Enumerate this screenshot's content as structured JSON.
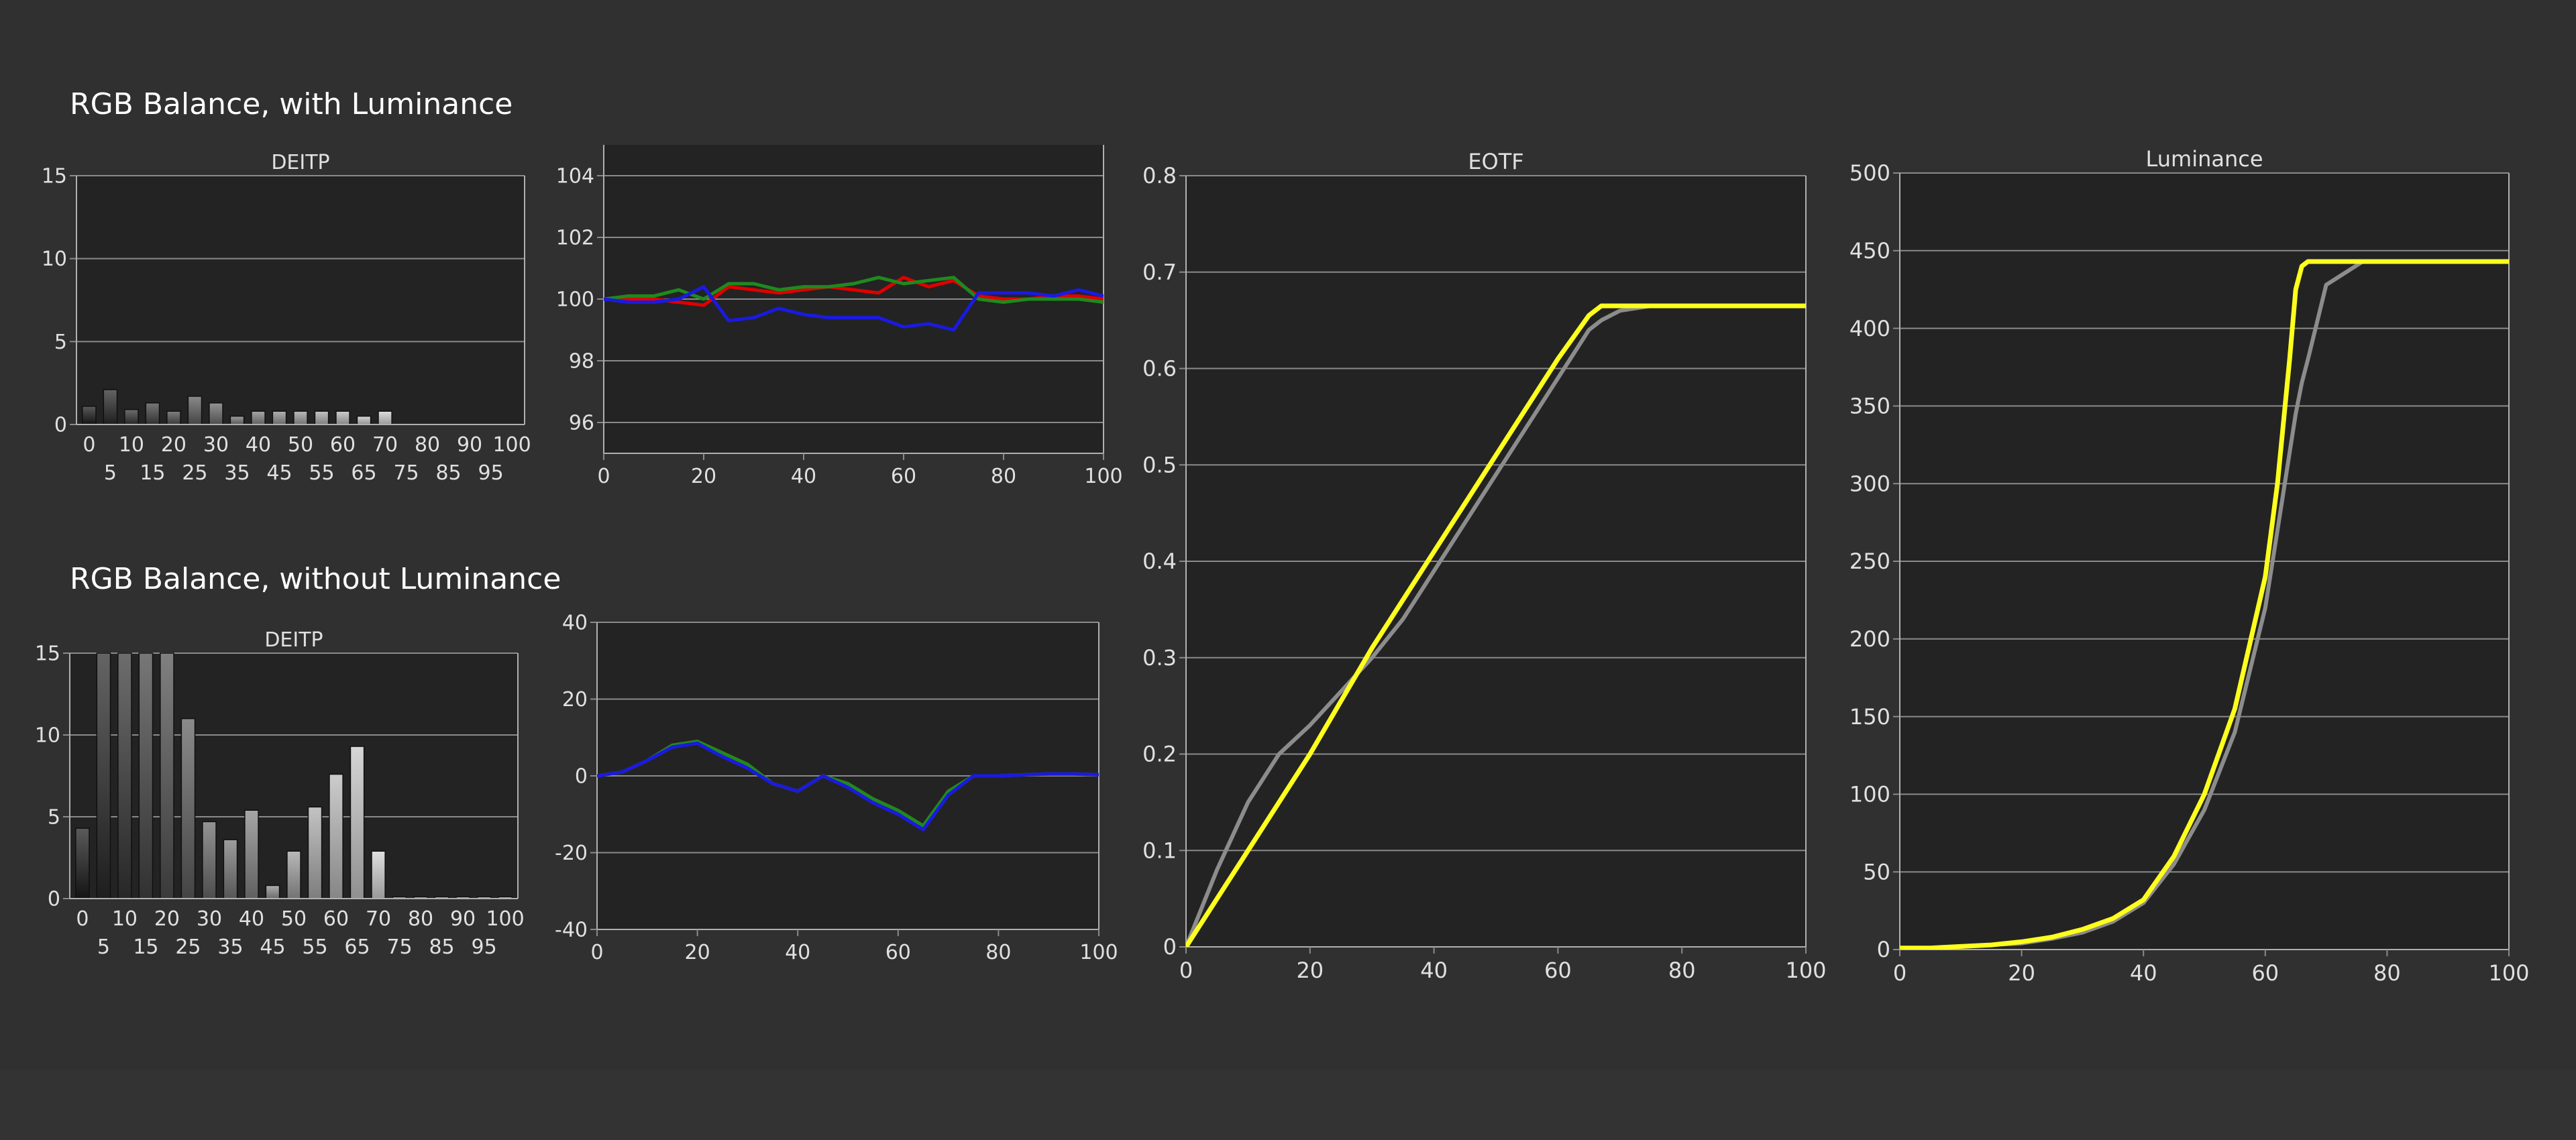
{
  "sections": {
    "with_luminance": "RGB Balance, with Luminance",
    "without_luminance": "RGB Balance, without Luminance"
  },
  "colors": {
    "plot_bg": "#232323",
    "grid": "#8a8a8a",
    "text": "#e0e0e0",
    "red": "#e00000",
    "green": "#1e8a1e",
    "blue": "#1a1ae0",
    "yellow": "#ffff1e",
    "reference": "#8c8c8c"
  },
  "chart_data": [
    {
      "id": "deitp_with",
      "type": "bar",
      "title": "DEITP",
      "categories": [
        0,
        5,
        10,
        15,
        20,
        25,
        30,
        35,
        40,
        45,
        50,
        55,
        60,
        65,
        70,
        75,
        80,
        85,
        90,
        95,
        100
      ],
      "values": [
        1.1,
        2.1,
        0.9,
        1.3,
        0.8,
        1.7,
        1.3,
        0.5,
        0.8,
        0.8,
        0.8,
        0.8,
        0.8,
        0.5,
        0.8,
        0,
        0,
        0,
        0,
        0,
        0
      ],
      "ylim": [
        0,
        15
      ],
      "yticks": [
        0,
        5,
        10,
        15
      ],
      "xticks_upper": [
        0,
        10,
        20,
        30,
        40,
        50,
        60,
        70,
        80,
        90,
        100
      ],
      "xticks_lower": [
        5,
        15,
        25,
        35,
        45,
        55,
        65,
        75,
        85,
        95
      ],
      "grid": true
    },
    {
      "id": "rgb_with",
      "type": "line",
      "title": "",
      "xlim": [
        0,
        100
      ],
      "ylim": [
        95,
        105
      ],
      "xticks": [
        0,
        20,
        40,
        60,
        80,
        100
      ],
      "yticks": [
        96,
        98,
        100,
        102,
        104
      ],
      "grid": true,
      "x": [
        0,
        5,
        10,
        15,
        20,
        25,
        30,
        35,
        40,
        45,
        50,
        55,
        60,
        65,
        70,
        75,
        80,
        85,
        90,
        95,
        100
      ],
      "series": [
        {
          "color": "red",
          "values": [
            100,
            100,
            100,
            99.9,
            99.8,
            100.4,
            100.3,
            100.2,
            100.3,
            100.4,
            100.3,
            100.2,
            100.7,
            100.4,
            100.6,
            100.1,
            100,
            100,
            100.1,
            100.1,
            100
          ]
        },
        {
          "color": "green",
          "values": [
            100,
            100.1,
            100.1,
            100.3,
            100,
            100.5,
            100.5,
            100.3,
            100.4,
            100.4,
            100.5,
            100.7,
            100.5,
            100.6,
            100.7,
            100,
            99.9,
            100,
            100,
            100,
            99.9
          ]
        },
        {
          "color": "blue",
          "values": [
            100,
            99.9,
            99.9,
            100,
            100.4,
            99.3,
            99.4,
            99.7,
            99.5,
            99.4,
            99.4,
            99.4,
            99.1,
            99.2,
            99,
            100.2,
            100.2,
            100.2,
            100.1,
            100.3,
            100.1
          ]
        }
      ]
    },
    {
      "id": "eotf",
      "type": "line",
      "title": "EOTF",
      "xlim": [
        0,
        100
      ],
      "ylim": [
        0,
        0.8
      ],
      "xticks": [
        0,
        20,
        40,
        60,
        80,
        100
      ],
      "yticks": [
        0,
        0.1,
        0.2,
        0.3,
        0.4,
        0.5,
        0.6,
        0.7,
        0.8
      ],
      "grid": true,
      "x": [
        0,
        5,
        10,
        15,
        20,
        25,
        30,
        35,
        40,
        45,
        50,
        55,
        60,
        65,
        67,
        70,
        75,
        80,
        85,
        90,
        95,
        100
      ],
      "series": [
        {
          "color": "reference",
          "values": [
            0,
            0.08,
            0.15,
            0.2,
            0.23,
            0.265,
            0.3,
            0.34,
            0.39,
            0.44,
            0.49,
            0.54,
            0.59,
            0.64,
            0.65,
            0.66,
            0.665,
            0.665,
            0.665,
            0.665,
            0.665,
            0.665
          ]
        },
        {
          "color": "yellow",
          "values": [
            0,
            0.05,
            0.1,
            0.15,
            0.2,
            0.255,
            0.31,
            0.36,
            0.41,
            0.46,
            0.51,
            0.56,
            0.61,
            0.655,
            0.665,
            0.665,
            0.665,
            0.665,
            0.665,
            0.665,
            0.665,
            0.665
          ]
        }
      ]
    },
    {
      "id": "luminance",
      "type": "line",
      "title": "Luminance",
      "xlim": [
        0,
        100
      ],
      "ylim": [
        0,
        500
      ],
      "xticks": [
        0,
        20,
        40,
        60,
        80,
        100
      ],
      "yticks": [
        0,
        50,
        100,
        150,
        200,
        250,
        300,
        350,
        400,
        450,
        500
      ],
      "grid": true,
      "x": [
        0,
        5,
        10,
        15,
        20,
        25,
        30,
        35,
        40,
        45,
        50,
        55,
        60,
        62,
        64,
        65,
        66,
        67,
        70,
        76,
        80,
        90,
        100
      ],
      "series": [
        {
          "color": "reference",
          "values": [
            1,
            1,
            2,
            3,
            4,
            7,
            11,
            18,
            30,
            55,
            90,
            140,
            220,
            270,
            320,
            345,
            365,
            380,
            428,
            443,
            443,
            443,
            443
          ]
        },
        {
          "color": "yellow",
          "values": [
            1,
            1,
            2,
            3,
            5,
            8,
            13,
            20,
            32,
            60,
            100,
            155,
            240,
            300,
            380,
            425,
            440,
            443,
            443,
            443,
            443,
            443,
            443
          ]
        }
      ]
    },
    {
      "id": "deitp_without",
      "type": "bar",
      "title": "DEITP",
      "categories": [
        0,
        5,
        10,
        15,
        20,
        25,
        30,
        35,
        40,
        45,
        50,
        55,
        60,
        65,
        70,
        75,
        80,
        85,
        90,
        95,
        100
      ],
      "values": [
        4.3,
        15,
        15,
        15,
        15,
        11,
        4.7,
        3.6,
        5.4,
        0.8,
        2.9,
        5.6,
        7.6,
        9.3,
        2.9,
        0.1,
        0.1,
        0.1,
        0.1,
        0.1,
        0.1
      ],
      "ylim": [
        0,
        15
      ],
      "yticks": [
        0,
        5,
        10,
        15
      ],
      "xticks_upper": [
        0,
        10,
        20,
        30,
        40,
        50,
        60,
        70,
        80,
        90,
        100
      ],
      "xticks_lower": [
        5,
        15,
        25,
        35,
        45,
        55,
        65,
        75,
        85,
        95
      ],
      "grid": true
    },
    {
      "id": "rgb_without",
      "type": "line",
      "title": "",
      "xlim": [
        0,
        100
      ],
      "ylim": [
        -40,
        40
      ],
      "xticks": [
        0,
        20,
        40,
        60,
        80,
        100
      ],
      "yticks": [
        -40,
        -20,
        0,
        20,
        40
      ],
      "grid": true,
      "x": [
        0,
        5,
        10,
        15,
        20,
        25,
        30,
        35,
        40,
        45,
        50,
        55,
        60,
        65,
        70,
        75,
        80,
        85,
        90,
        95,
        100
      ],
      "series": [
        {
          "color": "red",
          "values": [
            0,
            1,
            4,
            8,
            9,
            6,
            3,
            -2,
            -4,
            0,
            -2,
            -6,
            -9,
            -13,
            -4,
            0,
            0,
            0.3,
            0.5,
            0.5,
            0.3
          ]
        },
        {
          "color": "green",
          "values": [
            0,
            1,
            4,
            8,
            9,
            6,
            3,
            -2,
            -4,
            0,
            -2,
            -6,
            -9,
            -13,
            -4,
            0,
            0,
            0.3,
            0.5,
            0.5,
            0.3
          ]
        },
        {
          "color": "blue",
          "values": [
            0,
            1,
            4,
            7.5,
            8.5,
            5,
            2,
            -2,
            -4,
            0,
            -3,
            -7,
            -10,
            -14,
            -5,
            0,
            0,
            0.3,
            0.5,
            0.5,
            0.3
          ]
        }
      ]
    }
  ]
}
